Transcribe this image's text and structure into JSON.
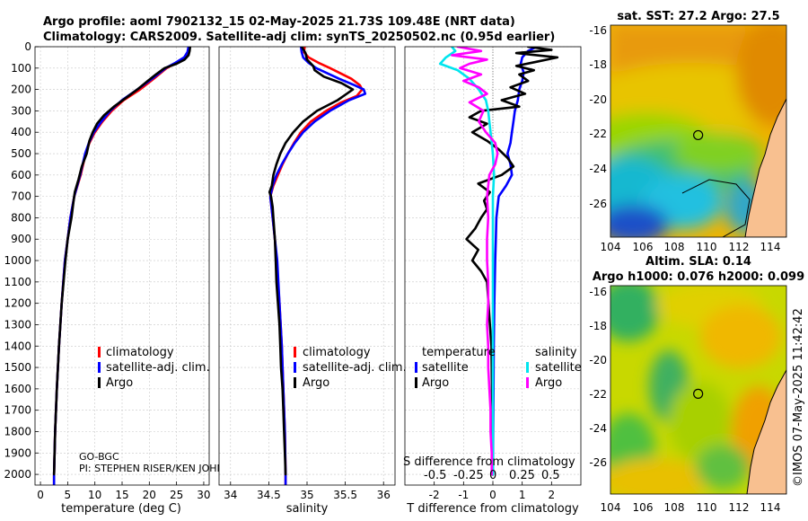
{
  "header": {
    "line1": "Argo profile: aoml 7902132_15 02-May-2025 21.73S 109.48E (NRT data)",
    "line2": "Climatology: CARS2009. Satellite-adj clim: synTS_20250502.nc (0.95d earlier)"
  },
  "colors": {
    "clim": "#ff0000",
    "sat": "#0000ff",
    "argo": "#000000",
    "sat_s": "#00e5ee",
    "argo_s": "#ff00ff"
  },
  "chart_data": [
    {
      "id": "temperature",
      "type": "line",
      "xlabel": "temperature (deg C)",
      "xlim": [
        -1,
        31
      ],
      "xticks": [
        0,
        5,
        10,
        15,
        20,
        25,
        30
      ],
      "ylim": [
        0,
        2050
      ],
      "yticks": [
        0,
        100,
        200,
        300,
        400,
        500,
        600,
        700,
        800,
        900,
        1000,
        1100,
        1200,
        1300,
        1400,
        1500,
        1600,
        1700,
        1800,
        1900,
        2000
      ],
      "legend": [
        "climatology",
        "satellite-adj. clim.",
        "Argo"
      ],
      "notes": [
        "GO-BGC",
        "PI: STEPHEN RISER/KEN JOHN"
      ],
      "series": [
        {
          "name": "climatology",
          "color": "#ff0000",
          "depth": [
            0,
            25,
            50,
            75,
            100,
            150,
            200,
            250,
            300,
            350,
            400,
            450,
            500,
            600,
            700,
            800,
            900,
            1000,
            1200,
            1400,
            1600,
            1800,
            2000,
            2050
          ],
          "values": [
            27.3,
            27.1,
            26.6,
            25.0,
            23.2,
            20.8,
            18.3,
            15.3,
            13.1,
            11.4,
            10.0,
            9.0,
            8.3,
            7.4,
            6.2,
            5.5,
            5.0,
            4.5,
            3.9,
            3.4,
            3.0,
            2.7,
            2.5,
            2.5
          ]
        },
        {
          "name": "satellite-adj. clim.",
          "color": "#0000ff",
          "depth": [
            0,
            25,
            50,
            75,
            100,
            150,
            200,
            250,
            300,
            350,
            400,
            450,
            500,
            600,
            700,
            800,
            900,
            1000,
            1200,
            1400,
            1600,
            1800,
            2000,
            2050
          ],
          "values": [
            27.2,
            27.0,
            26.4,
            24.8,
            23.0,
            20.5,
            17.8,
            15.0,
            12.8,
            11.2,
            9.8,
            8.9,
            8.2,
            7.3,
            6.2,
            5.5,
            5.0,
            4.5,
            3.9,
            3.4,
            3.0,
            2.7,
            2.5,
            2.5
          ]
        },
        {
          "name": "Argo",
          "color": "#000000",
          "depth": [
            0,
            20,
            40,
            60,
            80,
            100,
            130,
            160,
            200,
            240,
            280,
            320,
            360,
            400,
            440,
            500,
            560,
            620,
            680,
            720,
            800,
            900,
            1000,
            1200,
            1400,
            1600,
            1800,
            2000
          ],
          "values": [
            27.5,
            27.4,
            27.2,
            26.5,
            25.0,
            22.8,
            21.2,
            19.7,
            17.8,
            15.7,
            13.5,
            11.7,
            10.4,
            9.6,
            9.0,
            8.5,
            7.6,
            7.0,
            6.3,
            6.1,
            5.7,
            5.0,
            4.6,
            3.9,
            3.4,
            3.0,
            2.7,
            2.5
          ]
        }
      ]
    },
    {
      "id": "salinity",
      "type": "line",
      "xlabel": "salinity",
      "xlim": [
        33.85,
        36.15
      ],
      "xticks": [
        34,
        34.5,
        35,
        35.5,
        36
      ],
      "ylim": [
        0,
        2050
      ],
      "legend": [
        "climatology",
        "satellite-adj. clim.",
        "Argo"
      ],
      "series": [
        {
          "name": "climatology",
          "color": "#ff0000",
          "depth": [
            0,
            25,
            50,
            75,
            100,
            150,
            180,
            200,
            230,
            260,
            300,
            350,
            400,
            450,
            500,
            550,
            600,
            650,
            700,
            800,
            900,
            1000,
            1200,
            1400,
            1600,
            1800,
            2000,
            2050
          ],
          "values": [
            34.97,
            34.96,
            35.02,
            35.15,
            35.3,
            35.58,
            35.69,
            35.72,
            35.65,
            35.45,
            35.25,
            35.05,
            34.92,
            34.83,
            34.75,
            34.68,
            34.62,
            34.56,
            34.52,
            34.55,
            34.58,
            34.6,
            34.64,
            34.67,
            34.69,
            34.71,
            34.72,
            34.72
          ]
        },
        {
          "name": "satellite-adj. clim.",
          "color": "#0000ff",
          "depth": [
            0,
            25,
            50,
            75,
            100,
            150,
            180,
            200,
            220,
            250,
            300,
            350,
            400,
            450,
            500,
            550,
            600,
            650,
            700,
            800,
            900,
            1000,
            1200,
            1400,
            1600,
            1800,
            2000,
            2050
          ],
          "values": [
            34.92,
            34.93,
            34.95,
            35.02,
            35.12,
            35.42,
            35.62,
            35.74,
            35.76,
            35.55,
            35.3,
            35.1,
            34.95,
            34.84,
            34.75,
            34.67,
            34.6,
            34.55,
            34.52,
            34.55,
            34.58,
            34.61,
            34.64,
            34.67,
            34.69,
            34.71,
            34.72,
            34.72
          ]
        },
        {
          "name": "Argo",
          "color": "#000000",
          "depth": [
            0,
            30,
            60,
            90,
            110,
            140,
            170,
            200,
            250,
            300,
            350,
            400,
            450,
            500,
            550,
            600,
            650,
            680,
            700,
            750,
            800,
            900,
            1000,
            1100,
            1200,
            1300,
            1400,
            1500,
            1600,
            1700,
            1800,
            1900,
            2000
          ],
          "values": [
            34.93,
            34.98,
            35.0,
            35.08,
            35.1,
            35.22,
            35.45,
            35.6,
            35.4,
            35.13,
            34.95,
            34.82,
            34.72,
            34.65,
            34.6,
            34.56,
            34.54,
            34.51,
            34.53,
            34.55,
            34.56,
            34.58,
            34.59,
            34.6,
            34.62,
            34.64,
            34.65,
            34.66,
            34.68,
            34.69,
            34.7,
            34.71,
            34.72
          ]
        }
      ]
    },
    {
      "id": "differences",
      "type": "line",
      "xlabel": "T difference from climatology",
      "xlim": [
        -3,
        3
      ],
      "xticks": [
        -2,
        -1,
        0,
        1,
        2
      ],
      "xlabel_top": "S difference from climatology",
      "xticks_top": [
        "-0.5",
        "-0.25",
        "0",
        "0.25",
        "0.5"
      ],
      "ylim": [
        0,
        2050
      ],
      "legend_headers": [
        "temperature",
        "salinity"
      ],
      "legend": [
        "satellite",
        "Argo",
        "satellite",
        "Argo"
      ],
      "series": [
        {
          "name": "temperature satellite",
          "color": "#0000ff",
          "depth": [
            0,
            20,
            50,
            80,
            120,
            160,
            200,
            250,
            300,
            350,
            400,
            450,
            500,
            550,
            600,
            650,
            700,
            800,
            900,
            1000,
            1200,
            1400,
            1600,
            1800,
            2000
          ],
          "values": [
            1.5,
            1.2,
            1.0,
            0.95,
            1.05,
            1.0,
            0.9,
            0.85,
            0.75,
            0.7,
            0.65,
            0.6,
            0.5,
            0.6,
            0.65,
            0.45,
            0.2,
            0.12,
            0.1,
            0.08,
            0.05,
            0.03,
            0.02,
            0.01,
            0.0
          ]
        },
        {
          "name": "temperature Argo",
          "color": "#000000",
          "depth": [
            0,
            15,
            30,
            50,
            70,
            90,
            110,
            130,
            160,
            190,
            220,
            250,
            280,
            300,
            330,
            360,
            400,
            440,
            480,
            520,
            560,
            600,
            640,
            680,
            720,
            760,
            800,
            850,
            900,
            950,
            1000,
            1050,
            1100,
            1200,
            1300,
            1400,
            1600,
            1800,
            2000
          ],
          "values": [
            1.2,
            2.0,
            0.8,
            2.2,
            1.5,
            0.8,
            1.4,
            0.9,
            1.2,
            0.6,
            1.1,
            0.3,
            0.9,
            -0.4,
            -0.8,
            -0.2,
            -0.7,
            -0.2,
            0.2,
            0.5,
            0.7,
            0.3,
            -0.5,
            -0.1,
            -0.3,
            -0.2,
            -0.4,
            -0.6,
            -0.9,
            -0.5,
            -0.7,
            -0.4,
            -0.2,
            -0.15,
            -0.1,
            -0.05,
            -0.03,
            -0.02,
            -0.01
          ]
        },
        {
          "name": "salinity satellite",
          "color": "#00e5ee",
          "depth": [
            0,
            20,
            50,
            80,
            110,
            150,
            200,
            250,
            300,
            400,
            500,
            600,
            700,
            800,
            1000,
            1200,
            1500,
            1800,
            2000
          ],
          "values": [
            -0.35,
            -0.32,
            -0.4,
            -0.45,
            -0.3,
            -0.2,
            -0.12,
            -0.06,
            -0.04,
            -0.02,
            0.0,
            0.01,
            0.0,
            0.0,
            0.0,
            0.0,
            0.0,
            0.0,
            0.0
          ]
        },
        {
          "name": "salinity Argo",
          "color": "#ff00ff",
          "depth": [
            0,
            20,
            40,
            60,
            80,
            100,
            130,
            160,
            190,
            220,
            260,
            300,
            350,
            400,
            450,
            500,
            550,
            600,
            650,
            700,
            800,
            900,
            1000,
            1100,
            1200,
            1300,
            1400,
            1500,
            1600,
            1700,
            1800,
            1900,
            2000
          ],
          "values": [
            -0.3,
            -0.1,
            -0.35,
            -0.05,
            -0.2,
            -0.28,
            -0.1,
            -0.25,
            -0.12,
            -0.05,
            -0.2,
            -0.08,
            -0.12,
            -0.06,
            0.02,
            0.04,
            0.02,
            -0.03,
            -0.04,
            -0.05,
            -0.04,
            -0.05,
            -0.05,
            -0.04,
            -0.04,
            -0.05,
            -0.04,
            -0.04,
            -0.03,
            -0.02,
            -0.02,
            -0.01,
            -0.01
          ]
        }
      ]
    }
  ],
  "maps": {
    "sst": {
      "title": "sat. SST: 27.2 Argo: 27.5",
      "yticks": [
        "-16",
        "-18",
        "-20",
        "-22",
        "-24",
        "-26"
      ],
      "xticks": [
        "104",
        "106",
        "108",
        "110",
        "112",
        "114"
      ],
      "marker_lon": 109.48,
      "marker_lat": -21.73
    },
    "sla": {
      "title1": "Altim. SLA: 0.14",
      "title2": "Argo h1000: 0.076 h2000: 0.099",
      "yticks": [
        "-16",
        "-18",
        "-20",
        "-22",
        "-24",
        "-26"
      ],
      "xticks": [
        "104",
        "106",
        "108",
        "110",
        "112",
        "114"
      ],
      "marker_lon": 109.48,
      "marker_lat": -21.73
    },
    "lon_range": [
      104,
      115
    ],
    "lat_range": [
      -27.6,
      -15.4
    ]
  },
  "stamp": "©IMOS 07-May-2025 11:42:42"
}
